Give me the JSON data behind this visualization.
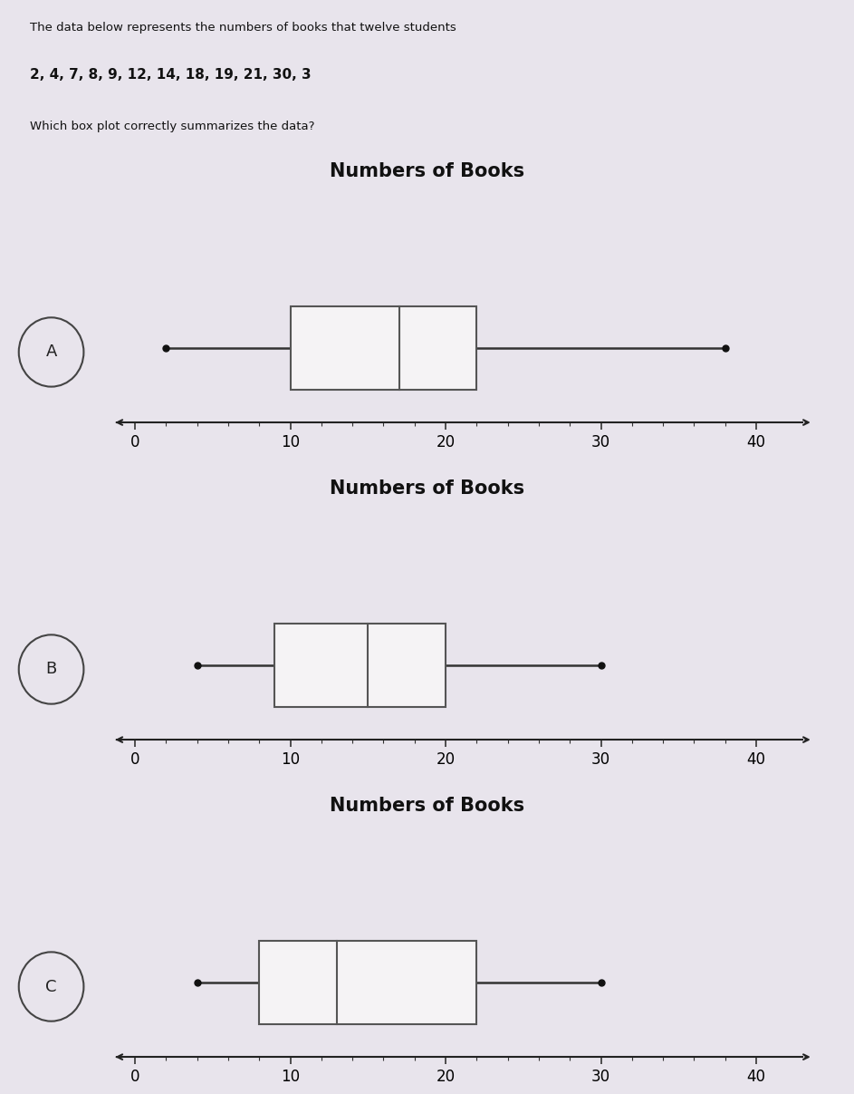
{
  "title": "Numbers of Books",
  "header_text": "The data below represents the numbers of books that twelve students",
  "data_line": "2, 4, 7, 8, 9, 12, 14, 18, 19, 21, 30, 3",
  "question_text": "Which box plot correctly summarizes the data?",
  "header_bg": "#b0a8b4",
  "content_bg": "#e8e4ec",
  "plots": [
    {
      "label": "A",
      "min": 2,
      "q1": 10,
      "median": 17,
      "q3": 22,
      "max": 38,
      "xlim": [
        -1,
        43
      ],
      "xticks": [
        0,
        10,
        20,
        30,
        40
      ]
    },
    {
      "label": "B",
      "min": 4,
      "q1": 9,
      "median": 15,
      "q3": 20,
      "max": 30,
      "xlim": [
        -1,
        43
      ],
      "xticks": [
        0,
        10,
        20,
        30,
        40
      ]
    },
    {
      "label": "C",
      "min": 4,
      "q1": 8,
      "median": 13,
      "q3": 22,
      "max": 30,
      "xlim": [
        -1,
        43
      ],
      "xticks": [
        0,
        10,
        20,
        30,
        40
      ]
    }
  ],
  "box_facecolor": "#f5f3f5",
  "box_edgecolor": "#555555",
  "whisker_color": "#333333",
  "marker_color": "#111111",
  "axis_title_fontsize": 15,
  "axis_title_fontweight": "bold",
  "label_fontsize": 13,
  "tick_fontsize": 12
}
